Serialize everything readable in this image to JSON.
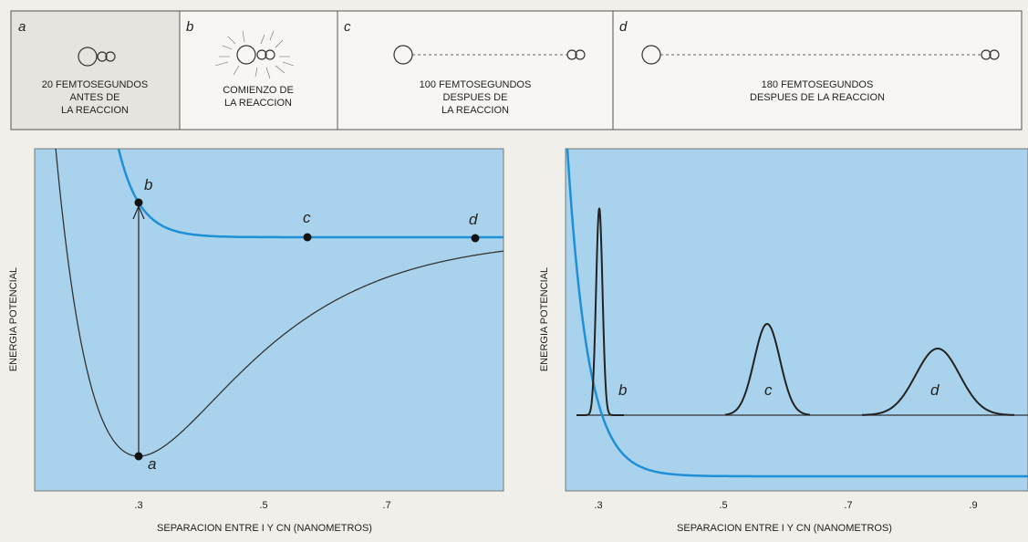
{
  "panels": [
    {
      "letter": "a",
      "caption": [
        "20 FEMTOSEGUNDOS",
        "ANTES DE",
        "LA REACCION"
      ]
    },
    {
      "letter": "b",
      "caption": [
        "COMIENZO DE",
        "LA REACCION"
      ]
    },
    {
      "letter": "c",
      "caption": [
        "100 FEMTOSEGUNDOS",
        "DESPUES DE",
        "LA REACCION"
      ]
    },
    {
      "letter": "d",
      "caption": [
        "180 FEMTOSEGUNDOS",
        "DESPUES DE LA REACCION"
      ]
    }
  ],
  "plots": [
    {
      "y_label": "ENERGIA POTENCIAL",
      "x_label": "SEPARACION ENTRE I Y CN (NANOMETROS)",
      "xticks": [
        ".3",
        ".5",
        ".7"
      ],
      "point_labels": [
        "a",
        "b",
        "c",
        "d"
      ]
    },
    {
      "y_label": "ENERGIA POTENCIAL",
      "x_label": "SEPARACION ENTRE I Y CN (NANOMETROS)",
      "xticks": [
        ".3",
        ".5",
        ".7",
        ".9"
      ],
      "point_labels": [
        "b",
        "c",
        "d"
      ]
    }
  ]
}
